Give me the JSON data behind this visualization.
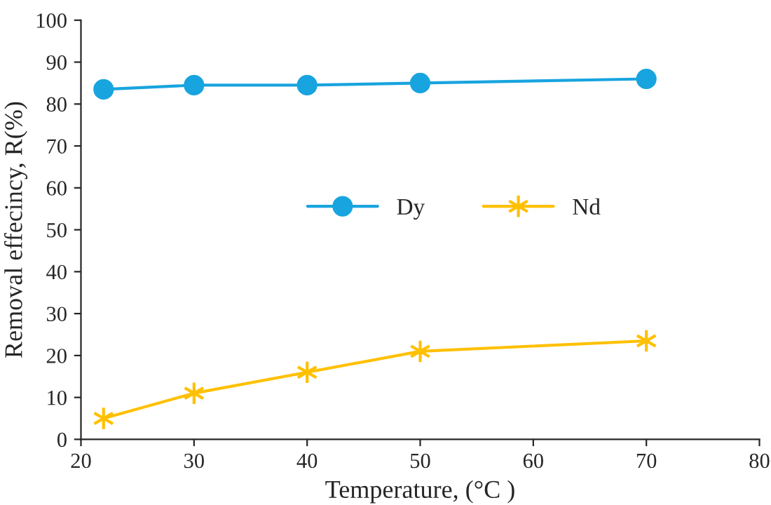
{
  "chart_data": {
    "type": "line",
    "xlabel": "Temperature, (°C )",
    "ylabel": "Removal effecincy, R(%)",
    "x": [
      22,
      30,
      40,
      50,
      70
    ],
    "series": [
      {
        "name": "Dy",
        "color": "#18a4df",
        "marker": "circle",
        "values": [
          83.5,
          84.5,
          84.5,
          85,
          86
        ]
      },
      {
        "name": "Nd",
        "color": "#ffc000",
        "marker": "cross",
        "values": [
          5,
          11,
          16,
          21,
          23.5
        ]
      }
    ],
    "xlim": [
      20,
      80
    ],
    "xticks": [
      20,
      30,
      40,
      50,
      60,
      70,
      80
    ],
    "ylim": [
      0,
      100
    ],
    "yticks": [
      0,
      10,
      20,
      30,
      40,
      50,
      60,
      70,
      80,
      90,
      100
    ],
    "grid": false,
    "legend": "center"
  }
}
